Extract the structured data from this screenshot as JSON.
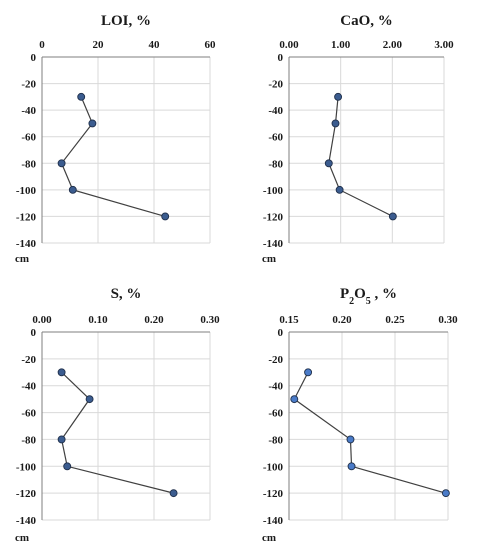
{
  "chart_data": [
    {
      "type": "scatter",
      "title": "LOI, %",
      "x_ticks": [
        "0",
        "20",
        "40",
        "60"
      ],
      "y_ticks": [
        "0",
        "-20",
        "-40",
        "-60",
        "-80",
        "-100",
        "-120",
        "-140"
      ],
      "y_unit": "cm",
      "xlim": [
        0,
        60
      ],
      "ylim": [
        -140,
        0
      ],
      "grid": true,
      "marker_color": "#3b5c8f",
      "points": [
        {
          "x": 14,
          "y": -30
        },
        {
          "x": 18,
          "y": -50
        },
        {
          "x": 7,
          "y": -80
        },
        {
          "x": 11,
          "y": -100
        },
        {
          "x": 44,
          "y": -120
        }
      ]
    },
    {
      "type": "scatter",
      "title": "CaO, %",
      "x_ticks": [
        "0.00",
        "1.00",
        "2.00",
        "3.00"
      ],
      "y_ticks": [
        "0",
        "-20",
        "-40",
        "-60",
        "-80",
        "-100",
        "-120",
        "-140"
      ],
      "y_unit": "cm",
      "xlim": [
        0,
        3
      ],
      "ylim": [
        -140,
        0
      ],
      "grid": true,
      "marker_color": "#3b5c8f",
      "points": [
        {
          "x": 0.95,
          "y": -30
        },
        {
          "x": 0.9,
          "y": -50
        },
        {
          "x": 0.77,
          "y": -80
        },
        {
          "x": 0.98,
          "y": -100
        },
        {
          "x": 2.01,
          "y": -120
        }
      ]
    },
    {
      "type": "scatter",
      "title": "S, %",
      "x_ticks": [
        "0.00",
        "0.10",
        "0.20",
        "0.30"
      ],
      "y_ticks": [
        "0",
        "-20",
        "-40",
        "-60",
        "-80",
        "-100",
        "-120",
        "-140"
      ],
      "y_unit": "cm",
      "xlim": [
        0,
        0.3
      ],
      "ylim": [
        -140,
        0
      ],
      "grid": true,
      "marker_color": "#3b5c8f",
      "points": [
        {
          "x": 0.035,
          "y": -30
        },
        {
          "x": 0.085,
          "y": -50
        },
        {
          "x": 0.035,
          "y": -80
        },
        {
          "x": 0.045,
          "y": -100
        },
        {
          "x": 0.235,
          "y": -120
        }
      ]
    },
    {
      "type": "scatter",
      "title_main": "P",
      "title_sub": "2",
      "title_mid": "O",
      "title_sub2": "5",
      "title_tail": " , %",
      "x_ticks": [
        "0.15",
        "0.20",
        "0.25",
        "0.30"
      ],
      "y_ticks": [
        "0",
        "-20",
        "-40",
        "-60",
        "-80",
        "-100",
        "-120",
        "-140"
      ],
      "y_unit": "cm",
      "xlim": [
        0.15,
        0.3
      ],
      "ylim": [
        -140,
        0
      ],
      "grid": true,
      "marker_color": "#4a7bc8",
      "points": [
        {
          "x": 0.168,
          "y": -30
        },
        {
          "x": 0.155,
          "y": -50
        },
        {
          "x": 0.208,
          "y": -80
        },
        {
          "x": 0.209,
          "y": -100
        },
        {
          "x": 0.298,
          "y": -120
        }
      ]
    }
  ]
}
